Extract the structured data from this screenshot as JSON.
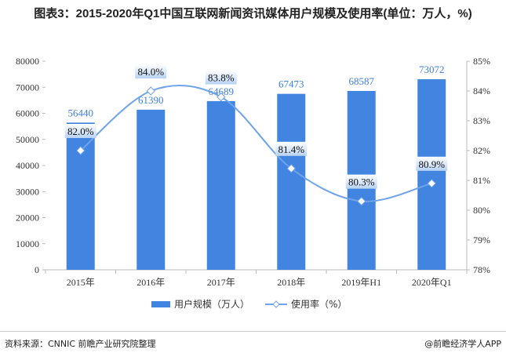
{
  "title": "图表3：2015-2020年Q1中国互联网新闻资讯媒体用户规模及使用率(单位：万人，%)",
  "source": "资料来源：CNNIC  前瞻产业研究院整理",
  "brand": "@前瞻经济学人APP",
  "chart_data": {
    "type": "bar+line",
    "title": "图表3：2015-2020年Q1中国互联网新闻资讯媒体用户规模及使用率(单位：万人，%)",
    "categories": [
      "2015年",
      "2016年",
      "2017年",
      "2018年",
      "2019年H1",
      "2020年Q1"
    ],
    "series": [
      {
        "name": "用户规模（万人）",
        "type": "bar",
        "axis": "left",
        "color": "#4285e0",
        "values": [
          56440,
          61390,
          64689,
          67473,
          68587,
          73072
        ]
      },
      {
        "name": "使用率（%）",
        "type": "line",
        "axis": "right",
        "color": "#6fa3ea",
        "values": [
          82.0,
          84.0,
          83.8,
          81.4,
          80.3,
          80.9
        ]
      }
    ],
    "y_left": {
      "range": [
        0,
        80000
      ],
      "ticks": [
        "0",
        "10000",
        "20000",
        "30000",
        "40000",
        "50000",
        "60000",
        "70000",
        "80000"
      ]
    },
    "y_right": {
      "range": [
        78,
        85
      ],
      "ticks": [
        "78%",
        "79%",
        "80%",
        "81%",
        "82%",
        "83%",
        "84%",
        "85%"
      ]
    },
    "bar_labels": [
      "56440",
      "61390",
      "64689",
      "67473",
      "68587",
      "73072"
    ],
    "line_labels": [
      "82.0%",
      "84.0%",
      "83.8%",
      "81.4%",
      "80.3%",
      "80.9%"
    ],
    "grid": false,
    "legend": "bottom"
  }
}
